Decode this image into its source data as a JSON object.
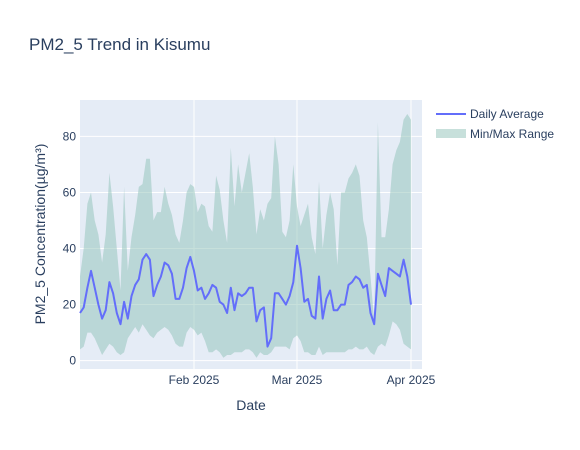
{
  "chart_data": {
    "type": "line",
    "title": "PM2_5 Trend in Kisumu",
    "xlabel": "Date",
    "ylabel": "PM2_5 Concentration(µg/m³)",
    "x_start": "2025-01-01",
    "x_end": "2025-04-04",
    "x_ticks": [
      {
        "date": "2025-02-01",
        "label": "Feb 2025"
      },
      {
        "date": "2025-03-01",
        "label": "Mar 2025"
      },
      {
        "date": "2025-04-01",
        "label": "Apr 2025"
      }
    ],
    "ylim": [
      -3,
      93
    ],
    "y_ticks": [
      0,
      20,
      40,
      60,
      80
    ],
    "grid": true,
    "legend_position": "top-right",
    "colors": {
      "line": "#636efa",
      "band": "#8fc2b8",
      "plot_bg": "#e5ecf6",
      "grid": "#ffffff"
    },
    "series": [
      {
        "name": "Daily Average",
        "kind": "line",
        "values": [
          17,
          19,
          26,
          32,
          26,
          20,
          15,
          18,
          28,
          24,
          17,
          13,
          21,
          15,
          23,
          27,
          29,
          36,
          38,
          36,
          23,
          27,
          30,
          35,
          34,
          31,
          22,
          22,
          26,
          33,
          37,
          32,
          25,
          26,
          22,
          24,
          27,
          26,
          21,
          20,
          17,
          26,
          18,
          24,
          23,
          24,
          26,
          26,
          14,
          18,
          19,
          5,
          8,
          24,
          24,
          22,
          20,
          23,
          28,
          41,
          33,
          21,
          22,
          16,
          15,
          30,
          15,
          22,
          25,
          18,
          18,
          20,
          20,
          27,
          28,
          30,
          29,
          26,
          27,
          17,
          13,
          31,
          27,
          23,
          33,
          32,
          31,
          30,
          36,
          30,
          20
        ]
      },
      {
        "name": "Min/Max Range",
        "kind": "band",
        "min": [
          4,
          5,
          10,
          10,
          8,
          5,
          2,
          4,
          6,
          5,
          3,
          2,
          3,
          8,
          10,
          12,
          10,
          13,
          11,
          9,
          8,
          10,
          11,
          12,
          11,
          9,
          6,
          5,
          5,
          10,
          12,
          11,
          9,
          10,
          7,
          3,
          3,
          4,
          3,
          1,
          2,
          2,
          3,
          3,
          3,
          4,
          4,
          3,
          1,
          3,
          2,
          2,
          3,
          5,
          5,
          5,
          5,
          4,
          8,
          9,
          7,
          3,
          3,
          2,
          2,
          5,
          2,
          3,
          3,
          3,
          3,
          3,
          3,
          4,
          4,
          5,
          4,
          4,
          5,
          3,
          2,
          5,
          6,
          5,
          9,
          14,
          13,
          11,
          6,
          5,
          4
        ],
        "max": [
          30,
          40,
          56,
          60,
          50,
          45,
          35,
          45,
          67,
          55,
          40,
          25,
          62,
          32,
          44,
          52,
          62,
          63,
          72,
          72,
          50,
          53,
          53,
          62,
          56,
          52,
          45,
          42,
          50,
          60,
          63,
          62,
          53,
          56,
          55,
          48,
          46,
          66,
          61,
          50,
          42,
          76,
          55,
          70,
          60,
          67,
          74,
          62,
          45,
          54,
          50,
          56,
          58,
          80,
          70,
          46,
          44,
          50,
          70,
          55,
          48,
          52,
          56,
          44,
          38,
          64,
          40,
          52,
          60,
          54,
          34,
          60,
          60,
          65,
          67,
          70,
          66,
          50,
          44,
          30,
          14,
          85,
          44,
          44,
          54,
          70,
          75,
          78,
          86,
          88,
          86
        ]
      }
    ]
  }
}
